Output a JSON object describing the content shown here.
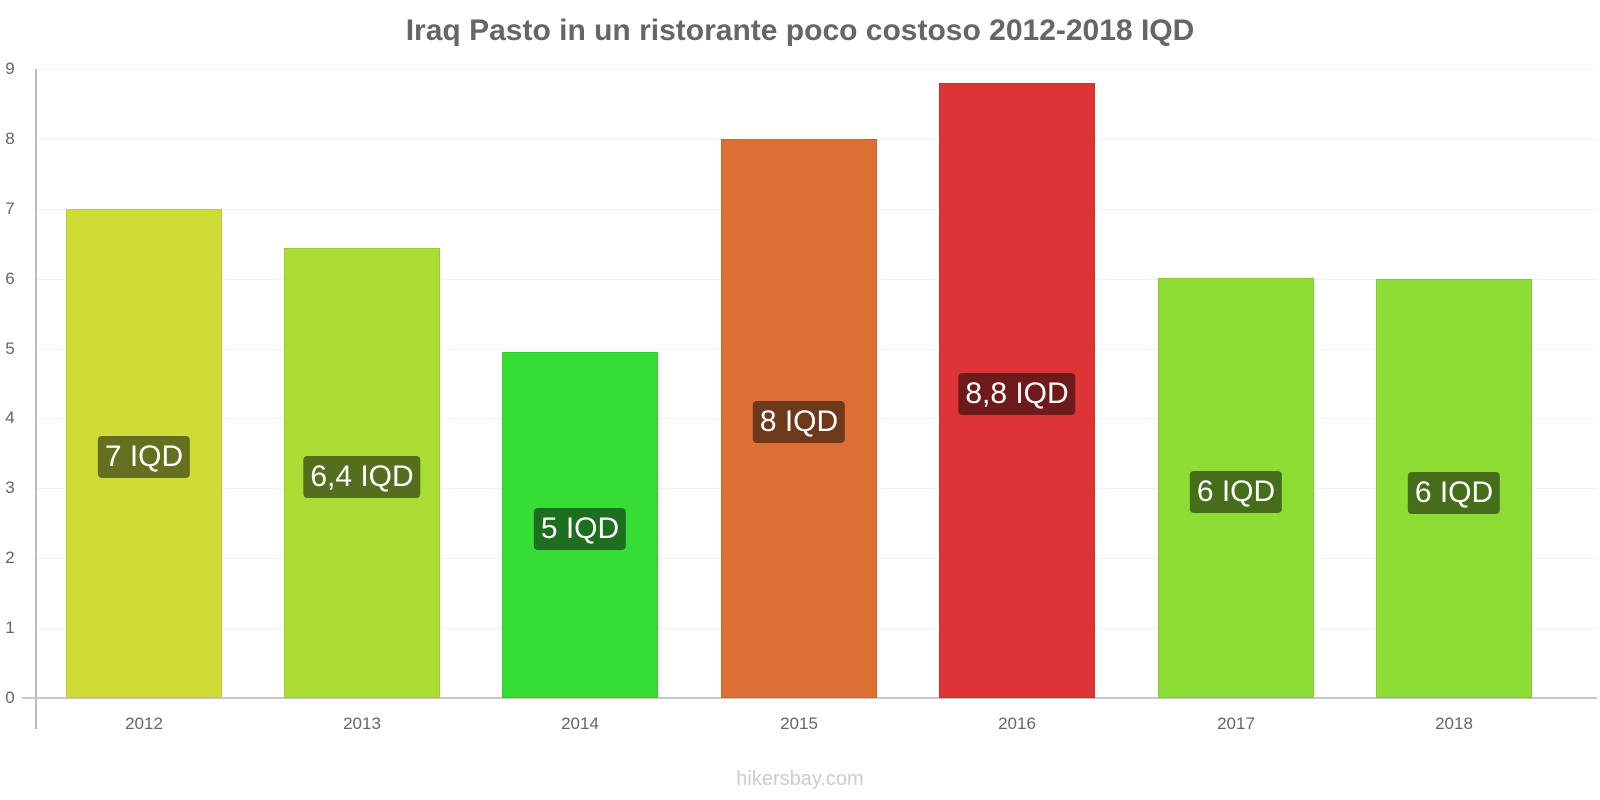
{
  "header": {
    "title": "Iraq Pasto in un ristorante poco costoso 2012-2018 IQD"
  },
  "footer": {
    "watermark": "hikersbay.com"
  },
  "axis": {
    "y_ticks": [
      "0",
      "1",
      "2",
      "3",
      "4",
      "5",
      "6",
      "7",
      "8",
      "9"
    ],
    "x_ticks": [
      "2012",
      "2013",
      "2014",
      "2015",
      "2016",
      "2017",
      "2018"
    ]
  },
  "bars": [
    {
      "year": "2012",
      "value": 7.0,
      "label": "7 IQD",
      "color": "#cfdc35",
      "label_bg": "#666f1e"
    },
    {
      "year": "2013",
      "value": 6.44,
      "label": "6,4 IQD",
      "color": "#acdd35",
      "label_bg": "#556e1e"
    },
    {
      "year": "2014",
      "value": 4.95,
      "label": "5 IQD",
      "color": "#35dd35",
      "label_bg": "#1d6e1e"
    },
    {
      "year": "2015",
      "value": 8.0,
      "label": "8 IQD",
      "color": "#dd6f35",
      "label_bg": "#6e381a"
    },
    {
      "year": "2016",
      "value": 8.8,
      "label": "8,8 IQD",
      "color": "#dd3535",
      "label_bg": "#6e1a1a"
    },
    {
      "year": "2017",
      "value": 6.01,
      "label": "6 IQD",
      "color": "#8ddd35",
      "label_bg": "#466e1a"
    },
    {
      "year": "2018",
      "value": 5.99,
      "label": "6 IQD",
      "color": "#8ddd35",
      "label_bg": "#466e1a"
    }
  ],
  "chart_data": {
    "type": "bar",
    "title": "Iraq Pasto in un ristorante poco costoso 2012-2018 IQD",
    "categories": [
      "2012",
      "2013",
      "2014",
      "2015",
      "2016",
      "2017",
      "2018"
    ],
    "values": [
      7.0,
      6.44,
      4.95,
      8.0,
      8.8,
      6.01,
      5.99
    ],
    "data_labels": [
      "7 IQD",
      "6,4 IQD",
      "5 IQD",
      "8 IQD",
      "8,8 IQD",
      "6 IQD",
      "6 IQD"
    ],
    "xlabel": "",
    "ylabel": "",
    "ylim": [
      0,
      9
    ],
    "yticks": [
      0,
      1,
      2,
      3,
      4,
      5,
      6,
      7,
      8,
      9
    ],
    "grid": true,
    "legend": "none",
    "source": "hikersbay.com"
  }
}
